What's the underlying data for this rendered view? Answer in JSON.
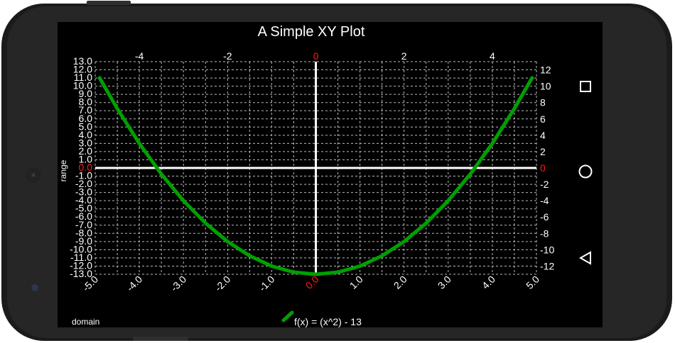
{
  "chart_data": {
    "type": "line",
    "title": "A Simple XY Plot",
    "xlabel": "domain",
    "ylabel": "range",
    "xlim": [
      -5.0,
      5.0
    ],
    "ylim": [
      -13.0,
      13.0
    ],
    "grid": true,
    "legend_position": "bottom-center",
    "x_ticks_bottom": [
      "-5.0",
      "-4.0",
      "-3.0",
      "-2.0",
      "-1.0",
      "0.0",
      "1.0",
      "2.0",
      "3.0",
      "4.0",
      "5.0"
    ],
    "x_ticks_top": [
      "-4",
      "-2",
      "0",
      "2",
      "4"
    ],
    "y_ticks_left": [
      "13.0",
      "12.0",
      "11.0",
      "10.0",
      "9.0",
      "8.0",
      "7.0",
      "6.0",
      "5.0",
      "4.0",
      "3.0",
      "2.0",
      "1.0",
      "0.0",
      "-1.0",
      "-2.0",
      "-3.0",
      "-4.0",
      "-5.0",
      "-6.0",
      "-7.0",
      "-8.0",
      "-9.0",
      "-10.0",
      "-11.0",
      "-12.0",
      "-13.0"
    ],
    "y_ticks_right": [
      "12",
      "10",
      "8",
      "6",
      "4",
      "2",
      "0",
      "-2",
      "-4",
      "-6",
      "-8",
      "-10",
      "-12"
    ],
    "series": [
      {
        "name": "f(x) = (x^2) - 13",
        "color": "#00a000",
        "x": [
          -4.9,
          -4.5,
          -4.0,
          -3.5,
          -3.0,
          -2.5,
          -2.0,
          -1.5,
          -1.0,
          -0.5,
          0.0,
          0.5,
          1.0,
          1.5,
          2.0,
          2.5,
          3.0,
          3.5,
          4.0,
          4.5,
          4.9
        ],
        "y": [
          11.01,
          7.25,
          3.0,
          -0.75,
          -4.0,
          -6.75,
          -9.0,
          -10.75,
          -12.0,
          -12.75,
          -13.0,
          -12.75,
          -12.0,
          -10.75,
          -9.0,
          -6.75,
          -4.0,
          -0.75,
          3.0,
          7.25,
          11.01
        ]
      }
    ],
    "colors": {
      "axis": "#ffffff",
      "grid": "#bbbbbb",
      "zero_label": "#ff1a1a"
    }
  },
  "nav": {
    "recents_icon": "square-recents-icon",
    "home_icon": "circle-home-icon",
    "back_icon": "triangle-back-icon"
  }
}
